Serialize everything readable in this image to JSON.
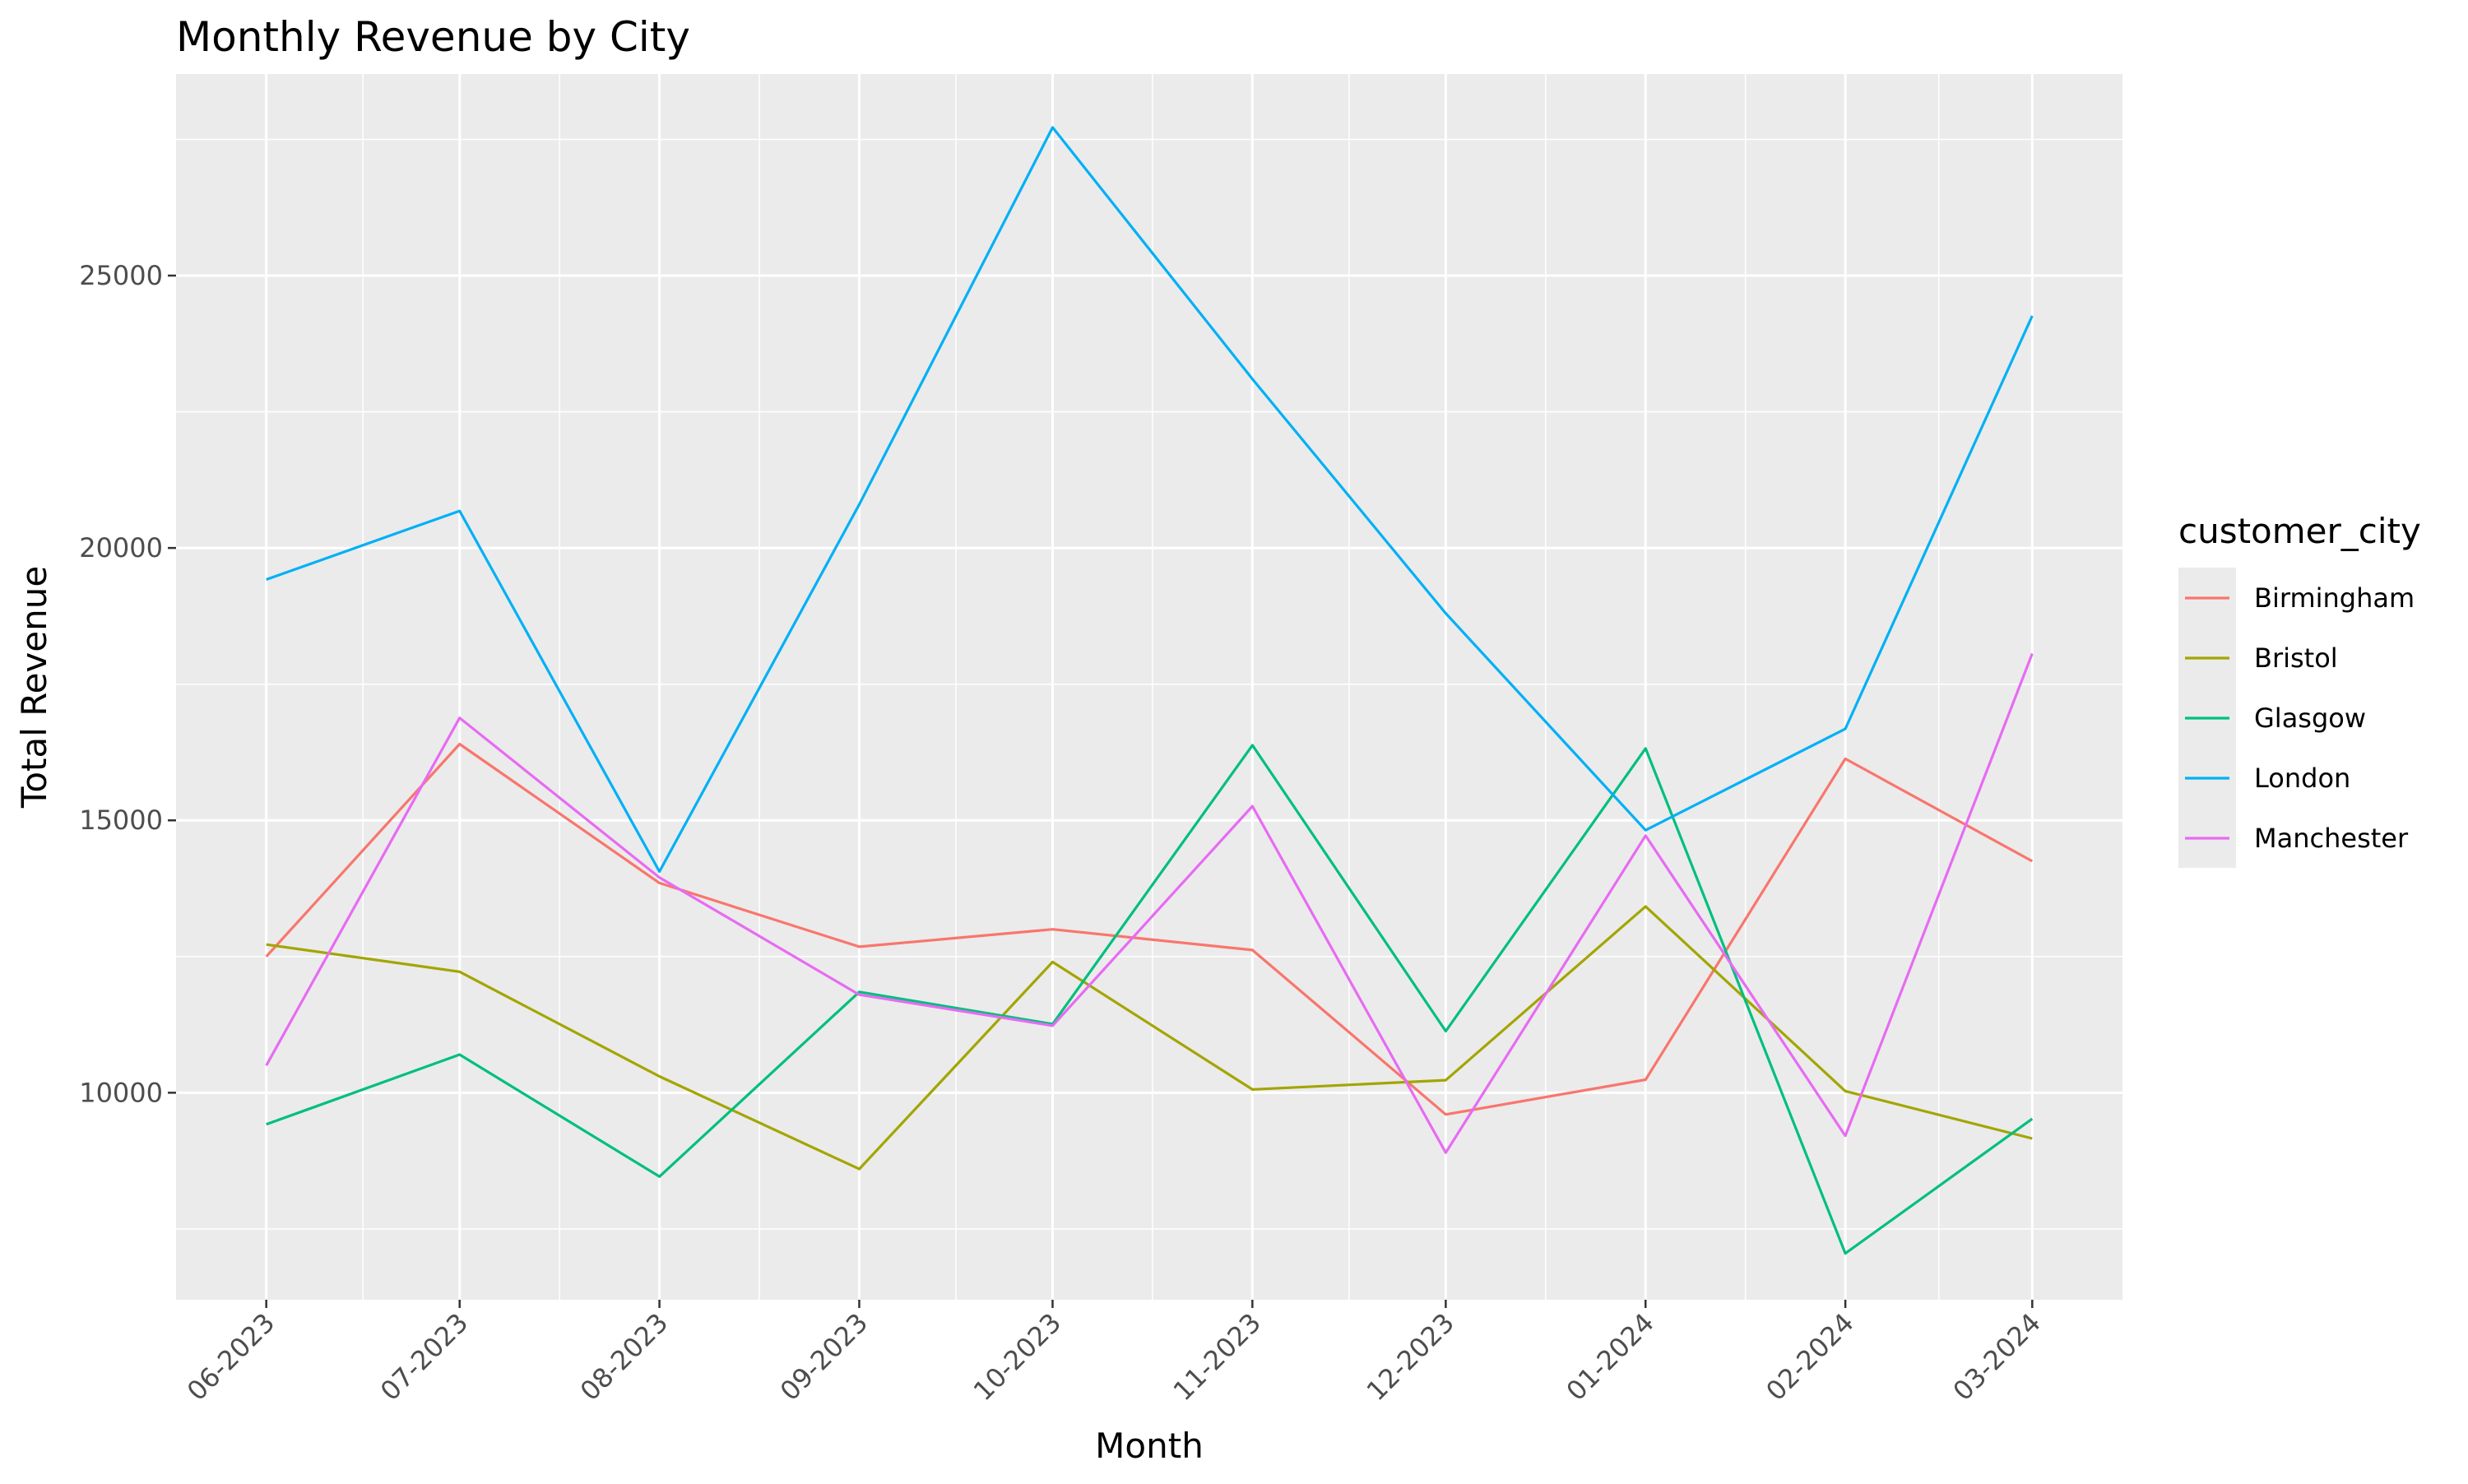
{
  "chart_data": {
    "type": "line",
    "title": "Monthly Revenue by City",
    "xlabel": "Month",
    "ylabel": "Total Revenue",
    "x": [
      "06-2023",
      "07-2023",
      "08-2023",
      "09-2023",
      "10-2023",
      "11-2023",
      "12-2023",
      "01-2024",
      "02-2024",
      "03-2024"
    ],
    "x_dates": [
      "2023-06-01",
      "2023-07-01",
      "2023-08-01",
      "2023-09-01",
      "2023-10-01",
      "2023-11-01",
      "2023-12-01",
      "2024-01-01",
      "2024-02-01",
      "2024-03-01"
    ],
    "xlim": [
      "2023-05-18",
      "2024-03-15"
    ],
    "ylim": [
      6200,
      28700
    ],
    "yticks": [
      10000,
      15000,
      20000,
      25000
    ],
    "grid": true,
    "legend": {
      "title": "customer_city",
      "position": "right"
    },
    "series": [
      {
        "name": "Birmingham",
        "color": "#F8766D",
        "values": [
          12500,
          16400,
          13850,
          12680,
          13000,
          12620,
          9600,
          10240,
          16130,
          14250
        ]
      },
      {
        "name": "Bristol",
        "color": "#A3A500",
        "values": [
          12720,
          12220,
          10300,
          8600,
          12400,
          10060,
          10230,
          13420,
          10030,
          9160
        ]
      },
      {
        "name": "Glasgow",
        "color": "#00BF7D",
        "values": [
          9420,
          10700,
          8460,
          11850,
          11260,
          16380,
          11130,
          16320,
          7050,
          9520
        ]
      },
      {
        "name": "London",
        "color": "#00B0F6",
        "values": [
          19420,
          20680,
          14060,
          20800,
          27720,
          23100,
          18800,
          14820,
          16680,
          24260
        ]
      },
      {
        "name": "Manchester",
        "color": "#E76BF3",
        "values": [
          10500,
          16880,
          13950,
          11800,
          11230,
          15260,
          8900,
          14720,
          9210,
          18060
        ]
      }
    ]
  }
}
